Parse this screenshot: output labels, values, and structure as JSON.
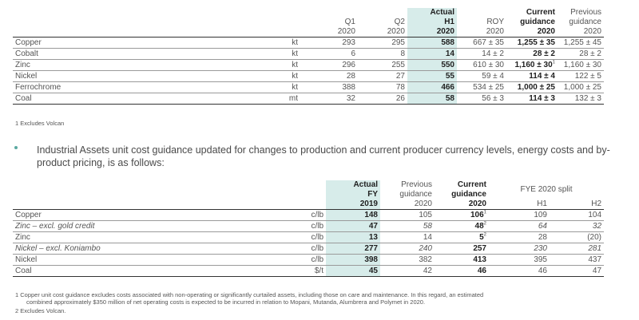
{
  "table1": {
    "headers": [
      {
        "l1": "",
        "l2": "Q1",
        "l3": "2020",
        "bold": false
      },
      {
        "l1": "",
        "l2": "Q2",
        "l3": "2020",
        "bold": false
      },
      {
        "l1": "Actual",
        "l2": "H1",
        "l3": "2020",
        "bold": true
      },
      {
        "l1": "",
        "l2": "ROY",
        "l3": "2020",
        "bold": false
      },
      {
        "l1": "Current",
        "l2": "guidance",
        "l3": "2020",
        "bold": true
      },
      {
        "l1": "Previous",
        "l2": "guidance",
        "l3": "2020",
        "bold": false
      }
    ],
    "rows": [
      {
        "name": "Copper",
        "unit": "kt",
        "q1": "293",
        "q2": "295",
        "h1": "588",
        "roy": "667 ± 35",
        "cur": "1,255 ± 35",
        "cur_sup": "",
        "prev": "1,255 ± 45"
      },
      {
        "name": "Cobalt",
        "unit": "kt",
        "q1": "6",
        "q2": "8",
        "h1": "14",
        "roy": "14 ± 2",
        "cur": "28 ± 2",
        "cur_sup": "",
        "prev": "28 ± 2"
      },
      {
        "name": "Zinc",
        "unit": "kt",
        "q1": "296",
        "q2": "255",
        "h1": "550",
        "roy": "610 ± 30",
        "cur": "1,160 ± 30",
        "cur_sup": "1",
        "prev": "1,160 ± 30"
      },
      {
        "name": "Nickel",
        "unit": "kt",
        "q1": "28",
        "q2": "27",
        "h1": "55",
        "roy": "59 ± 4",
        "cur": "114 ± 4",
        "cur_sup": "",
        "prev": "122 ± 5"
      },
      {
        "name": "Ferrochrome",
        "unit": "kt",
        "q1": "388",
        "q2": "78",
        "h1": "466",
        "roy": "534 ± 25",
        "cur": "1,000 ± 25",
        "cur_sup": "",
        "prev": "1,000 ± 25"
      },
      {
        "name": "Coal",
        "unit": "mt",
        "q1": "32",
        "q2": "26",
        "h1": "58",
        "roy": "56 ± 3",
        "cur": "114 ± 3",
        "cur_sup": "",
        "prev": "132 ± 3"
      }
    ],
    "footnote": "1   Excludes Volcan"
  },
  "bullet": "Industrial Assets unit cost guidance updated for changes to production and current producer currency levels, energy costs and by-product pricing, is as follows:",
  "table2": {
    "headers": {
      "actual": {
        "l1": "Actual",
        "l2": "FY",
        "l3": "2019"
      },
      "previous": {
        "l1": "Previous",
        "l2": "guidance",
        "l3": "2020"
      },
      "current": {
        "l1": "Current",
        "l2": "guidance",
        "l3": "2020"
      },
      "split": "FYE 2020 split",
      "h1": "H1",
      "h2": "H2"
    },
    "rows": [
      {
        "name": "Copper",
        "italic": false,
        "unit": "c/lb",
        "actual": "148",
        "prev": "105",
        "cur": "106",
        "sup": "1",
        "h1": "109",
        "h2": "104"
      },
      {
        "name": "Zinc – excl. gold credit",
        "italic": true,
        "unit": "c/lb",
        "actual": "47",
        "prev": "58",
        "cur": "48",
        "sup": "2",
        "h1": "64",
        "h2": "32"
      },
      {
        "name": "Zinc",
        "italic": false,
        "unit": "c/lb",
        "actual": "13",
        "prev": "14",
        "cur": "5",
        "sup": "2",
        "h1": "28",
        "h2": "(20)"
      },
      {
        "name": "Nickel – excl. Koniambo",
        "italic": true,
        "unit": "c/lb",
        "actual": "277",
        "prev": "240",
        "cur": "257",
        "sup": "",
        "h1": "230",
        "h2": "281"
      },
      {
        "name": "Nickel",
        "italic": false,
        "unit": "c/lb",
        "actual": "398",
        "prev": "382",
        "cur": "413",
        "sup": "",
        "h1": "395",
        "h2": "437"
      },
      {
        "name": "Coal",
        "italic": false,
        "unit": "$/t",
        "actual": "45",
        "prev": "42",
        "cur": "46",
        "sup": "",
        "h1": "46",
        "h2": "47"
      }
    ],
    "footnote1": "1   Copper unit cost guidance excludes costs associated with non-operating or significantly curtailed assets, including those on care and maintenance. In this regard, an estimated",
    "footnote1b": "combined approximately $350 million of net operating costs is expected to be incurred in relation to Mopani, Mutanda, Alumbrera and Polymet in 2020.",
    "footnote2": "2   Excludes Volcan."
  }
}
